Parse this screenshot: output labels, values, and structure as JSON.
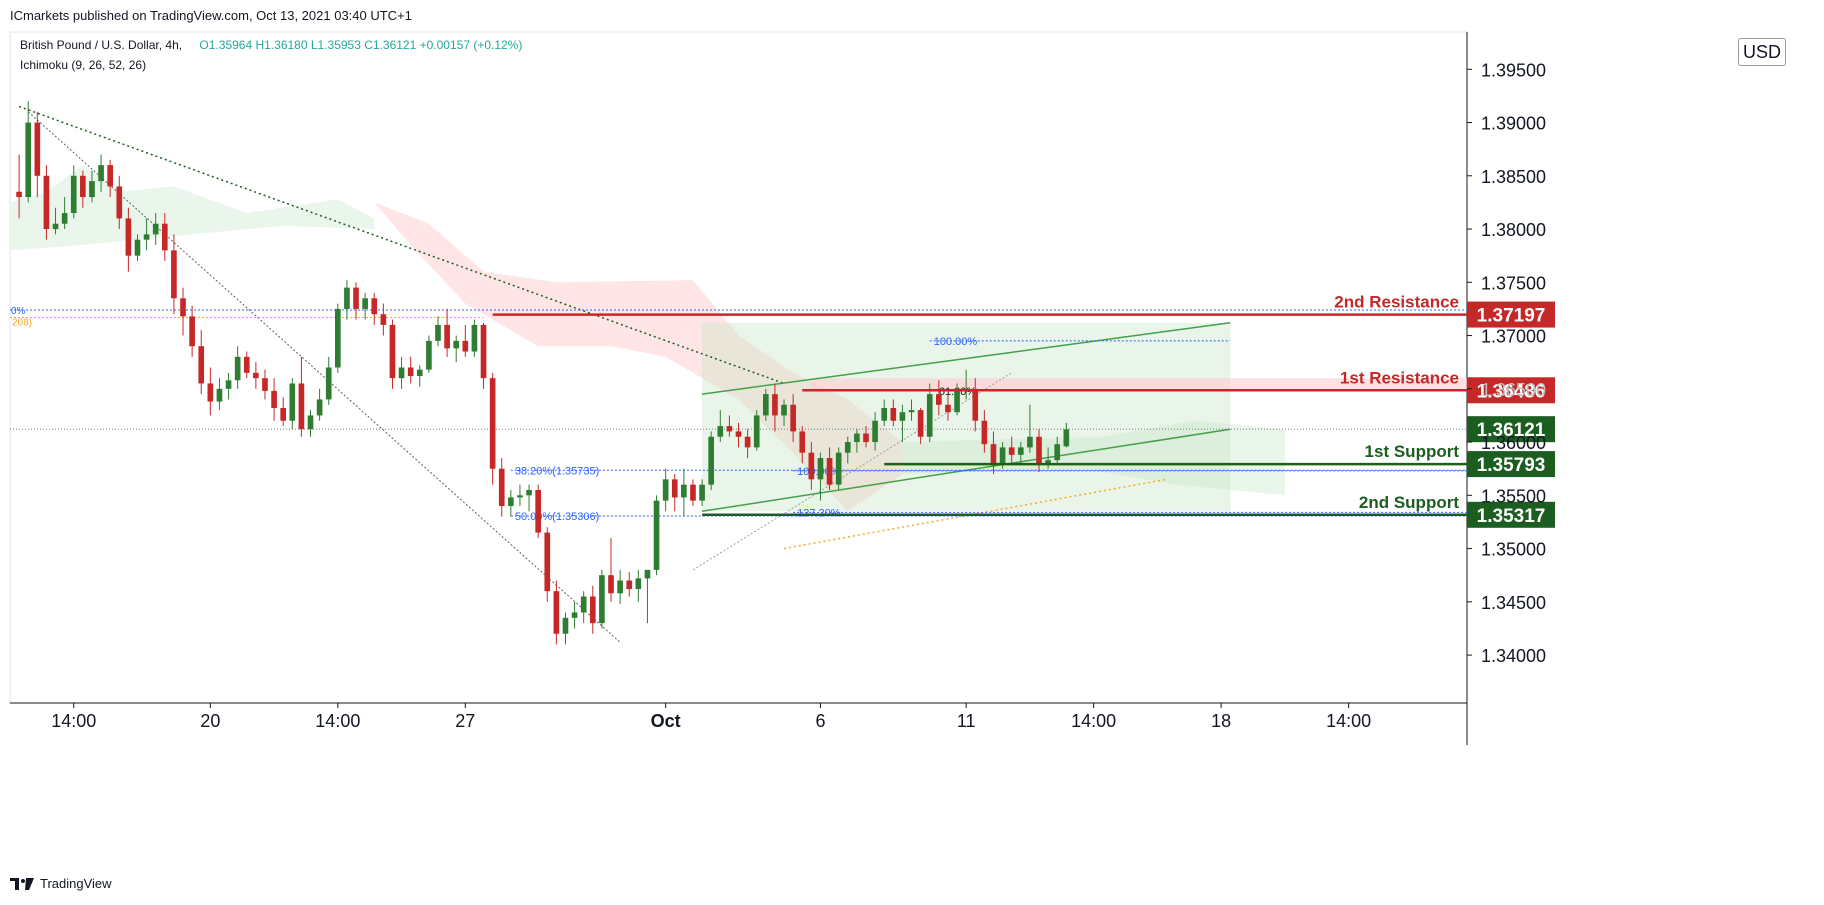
{
  "header": {
    "published": "ICmarkets published on TradingView.com, Oct 13, 2021 03:40 UTC+1",
    "symbol": "British Pound / U.S. Dollar, 4h,",
    "ohlc": "O1.35964  H1.36180  L1.35953  C1.36121  +0.00157 (+0.12%)",
    "indicator": "Ichimoku (9, 26, 52, 26)"
  },
  "currency": "USD",
  "footer": {
    "brand": "TradingView"
  },
  "colors": {
    "up": "#2e7d32",
    "down": "#c62828",
    "resistance": "#c62828",
    "support": "#1b5e20",
    "channel": "#43a047",
    "fib": "#2962ff",
    "cloud_green": "#e8f5e9",
    "cloud_red": "#ffe0e0"
  },
  "chart_data": {
    "type": "candlestick",
    "y_axis": {
      "range": [
        1.3355,
        1.3985
      ],
      "ticks": [
        "1.34000",
        "1.34500",
        "1.35000",
        "1.35500",
        "1.36000",
        "1.36500",
        "1.37000",
        "1.37500",
        "1.38000",
        "1.38500",
        "1.39000",
        "1.39500"
      ]
    },
    "x_axis": {
      "range": [
        0,
        160
      ],
      "ticks": [
        {
          "label": "14:00",
          "x": 7
        },
        {
          "label": "20",
          "x": 22
        },
        {
          "label": "14:00",
          "x": 36
        },
        {
          "label": "27",
          "x": 50
        },
        {
          "label": "Oct",
          "x": 72
        },
        {
          "label": "6",
          "x": 89
        },
        {
          "label": "11",
          "x": 105
        },
        {
          "label": "14:00",
          "x": 119
        },
        {
          "label": "18",
          "x": 133
        },
        {
          "label": "14:00",
          "x": 147
        }
      ]
    },
    "candles": [
      [
        1.3835,
        1.387,
        1.381,
        1.383
      ],
      [
        1.383,
        1.392,
        1.3825,
        1.39
      ],
      [
        1.39,
        1.391,
        1.383,
        1.385
      ],
      [
        1.385,
        1.386,
        1.379,
        1.38
      ],
      [
        1.38,
        1.382,
        1.3795,
        1.3805
      ],
      [
        1.3805,
        1.383,
        1.38,
        1.3815
      ],
      [
        1.3815,
        1.386,
        1.381,
        1.385
      ],
      [
        1.385,
        1.3855,
        1.382,
        1.383
      ],
      [
        1.383,
        1.3855,
        1.3825,
        1.3845
      ],
      [
        1.3845,
        1.387,
        1.3835,
        1.386
      ],
      [
        1.386,
        1.3865,
        1.383,
        1.384
      ],
      [
        1.384,
        1.385,
        1.38,
        1.381
      ],
      [
        1.381,
        1.382,
        1.376,
        1.3775
      ],
      [
        1.3775,
        1.3795,
        1.377,
        1.379
      ],
      [
        1.379,
        1.381,
        1.378,
        1.3795
      ],
      [
        1.3795,
        1.3815,
        1.3785,
        1.3805
      ],
      [
        1.3805,
        1.3815,
        1.377,
        1.378
      ],
      [
        1.378,
        1.3795,
        1.372,
        1.3735
      ],
      [
        1.3735,
        1.3745,
        1.37,
        1.3718
      ],
      [
        1.3718,
        1.3728,
        1.368,
        1.369
      ],
      [
        1.369,
        1.3705,
        1.3645,
        1.3655
      ],
      [
        1.3655,
        1.367,
        1.3625,
        1.3638
      ],
      [
        1.3638,
        1.366,
        1.363,
        1.365
      ],
      [
        1.365,
        1.3665,
        1.364,
        1.3658
      ],
      [
        1.3658,
        1.369,
        1.365,
        1.368
      ],
      [
        1.368,
        1.3685,
        1.366,
        1.3665
      ],
      [
        1.3665,
        1.3675,
        1.365,
        1.366
      ],
      [
        1.366,
        1.3668,
        1.364,
        1.3648
      ],
      [
        1.3648,
        1.366,
        1.362,
        1.3632
      ],
      [
        1.3632,
        1.3642,
        1.3615,
        1.362
      ],
      [
        1.362,
        1.366,
        1.3612,
        1.3655
      ],
      [
        1.3655,
        1.368,
        1.3605,
        1.3612
      ],
      [
        1.3612,
        1.363,
        1.3605,
        1.3625
      ],
      [
        1.3625,
        1.365,
        1.362,
        1.364
      ],
      [
        1.364,
        1.368,
        1.3635,
        1.367
      ],
      [
        1.367,
        1.373,
        1.3665,
        1.3725
      ],
      [
        1.3725,
        1.3752,
        1.3715,
        1.3745
      ],
      [
        1.3745,
        1.375,
        1.3715,
        1.3725
      ],
      [
        1.3725,
        1.374,
        1.3715,
        1.3735
      ],
      [
        1.3735,
        1.374,
        1.371,
        1.372
      ],
      [
        1.372,
        1.373,
        1.37,
        1.371
      ],
      [
        1.371,
        1.3715,
        1.365,
        1.366
      ],
      [
        1.366,
        1.368,
        1.365,
        1.367
      ],
      [
        1.367,
        1.368,
        1.3655,
        1.3662
      ],
      [
        1.3662,
        1.3672,
        1.3652,
        1.3668
      ],
      [
        1.3668,
        1.37,
        1.3665,
        1.3695
      ],
      [
        1.3695,
        1.3718,
        1.369,
        1.371
      ],
      [
        1.371,
        1.3725,
        1.368,
        1.3688
      ],
      [
        1.3688,
        1.37,
        1.3675,
        1.3695
      ],
      [
        1.3695,
        1.371,
        1.368,
        1.3685
      ],
      [
        1.3685,
        1.3715,
        1.368,
        1.371
      ],
      [
        1.371,
        1.3712,
        1.365,
        1.366
      ],
      [
        1.366,
        1.3665,
        1.356,
        1.3575
      ],
      [
        1.3575,
        1.3585,
        1.353,
        1.354
      ],
      [
        1.354,
        1.3555,
        1.353,
        1.3548
      ],
      [
        1.3548,
        1.356,
        1.354,
        1.355
      ],
      [
        1.355,
        1.356,
        1.3535,
        1.3555
      ],
      [
        1.3555,
        1.356,
        1.351,
        1.3515
      ],
      [
        1.3515,
        1.352,
        1.345,
        1.346
      ],
      [
        1.346,
        1.347,
        1.341,
        1.342
      ],
      [
        1.342,
        1.344,
        1.341,
        1.3435
      ],
      [
        1.3435,
        1.345,
        1.3425,
        1.344
      ],
      [
        1.344,
        1.346,
        1.343,
        1.3455
      ],
      [
        1.3455,
        1.3465,
        1.342,
        1.343
      ],
      [
        1.343,
        1.348,
        1.3425,
        1.3475
      ],
      [
        1.3475,
        1.351,
        1.345,
        1.3458
      ],
      [
        1.3458,
        1.348,
        1.3448,
        1.347
      ],
      [
        1.347,
        1.3478,
        1.3455,
        1.3462
      ],
      [
        1.3462,
        1.348,
        1.345,
        1.3472
      ],
      [
        1.3472,
        1.3478,
        1.343,
        1.348
      ],
      [
        1.348,
        1.355,
        1.3475,
        1.3545
      ],
      [
        1.3545,
        1.3575,
        1.3535,
        1.3565
      ],
      [
        1.3565,
        1.357,
        1.3535,
        1.3548
      ],
      [
        1.3548,
        1.3575,
        1.353,
        1.356
      ],
      [
        1.356,
        1.3565,
        1.354,
        1.3545
      ],
      [
        1.3545,
        1.3565,
        1.354,
        1.356
      ],
      [
        1.356,
        1.361,
        1.3555,
        1.3605
      ],
      [
        1.3605,
        1.363,
        1.36,
        1.3615
      ],
      [
        1.3615,
        1.3625,
        1.3605,
        1.361
      ],
      [
        1.361,
        1.3618,
        1.3595,
        1.3605
      ],
      [
        1.3605,
        1.3612,
        1.3585,
        1.3595
      ],
      [
        1.3595,
        1.363,
        1.3592,
        1.3625
      ],
      [
        1.3625,
        1.365,
        1.362,
        1.3645
      ],
      [
        1.3645,
        1.3655,
        1.361,
        1.3625
      ],
      [
        1.3625,
        1.364,
        1.3615,
        1.3635
      ],
      [
        1.3635,
        1.3645,
        1.36,
        1.361
      ],
      [
        1.361,
        1.3615,
        1.358,
        1.359
      ],
      [
        1.359,
        1.36,
        1.3555,
        1.3565
      ],
      [
        1.3565,
        1.359,
        1.3545,
        1.3585
      ],
      [
        1.3585,
        1.3595,
        1.3555,
        1.356
      ],
      [
        1.356,
        1.3595,
        1.3555,
        1.359
      ],
      [
        1.359,
        1.3605,
        1.358,
        1.36
      ],
      [
        1.36,
        1.3612,
        1.359,
        1.3608
      ],
      [
        1.3608,
        1.3615,
        1.3595,
        1.36
      ],
      [
        1.36,
        1.3628,
        1.3592,
        1.362
      ],
      [
        1.362,
        1.364,
        1.3615,
        1.3632
      ],
      [
        1.3632,
        1.364,
        1.3615,
        1.362
      ],
      [
        1.362,
        1.3635,
        1.36,
        1.3628
      ],
      [
        1.3628,
        1.364,
        1.362,
        1.363
      ],
      [
        1.363,
        1.3632,
        1.3598,
        1.3605
      ],
      [
        1.3605,
        1.3655,
        1.36,
        1.3645
      ],
      [
        1.3645,
        1.3658,
        1.3625,
        1.3635
      ],
      [
        1.3635,
        1.3645,
        1.362,
        1.3628
      ],
      [
        1.3628,
        1.3655,
        1.3625,
        1.3648
      ],
      [
        1.3648,
        1.3668,
        1.364,
        1.365
      ],
      [
        1.365,
        1.366,
        1.361,
        1.362
      ],
      [
        1.362,
        1.363,
        1.359,
        1.3598
      ],
      [
        1.3598,
        1.361,
        1.357,
        1.358
      ],
      [
        1.358,
        1.36,
        1.3575,
        1.3595
      ],
      [
        1.3595,
        1.3605,
        1.358,
        1.3588
      ],
      [
        1.3588,
        1.36,
        1.358,
        1.3595
      ],
      [
        1.3595,
        1.3635,
        1.359,
        1.3605
      ],
      [
        1.3605,
        1.3612,
        1.3572,
        1.358
      ],
      [
        1.358,
        1.3595,
        1.3575,
        1.3583
      ],
      [
        1.3583,
        1.3605,
        1.358,
        1.3598
      ],
      [
        1.3596,
        1.3618,
        1.3595,
        1.3612
      ]
    ],
    "levels": [
      {
        "label": "2nd Resistance",
        "value": "1.37197",
        "y": 1.37197,
        "kind": "resistance"
      },
      {
        "label": "1st Resistance",
        "value": "1.36486",
        "y": 1.36486,
        "kind": "resistance"
      },
      {
        "label": "",
        "value": "1.36121",
        "y": 1.36121,
        "kind": "price"
      },
      {
        "label": "1st Support",
        "value": "1.35793",
        "y": 1.35793,
        "kind": "support"
      },
      {
        "label": "2nd Support",
        "value": "1.35317",
        "y": 1.35317,
        "kind": "support"
      }
    ],
    "fib_labels": [
      {
        "text": "100.00%",
        "y": 1.3695
      },
      {
        "text": "38.20%(1.35735)",
        "y": 1.35735
      },
      {
        "text": "50.00%(1.35306)",
        "y": 1.35306
      },
      {
        "text": "100.00%",
        "y": 1.3573
      },
      {
        "text": "127.20%",
        "y": 1.3534
      },
      {
        "text": "61.80%",
        "y": 1.3648
      }
    ],
    "left_edge_labels": [
      "0%",
      "208)"
    ]
  }
}
